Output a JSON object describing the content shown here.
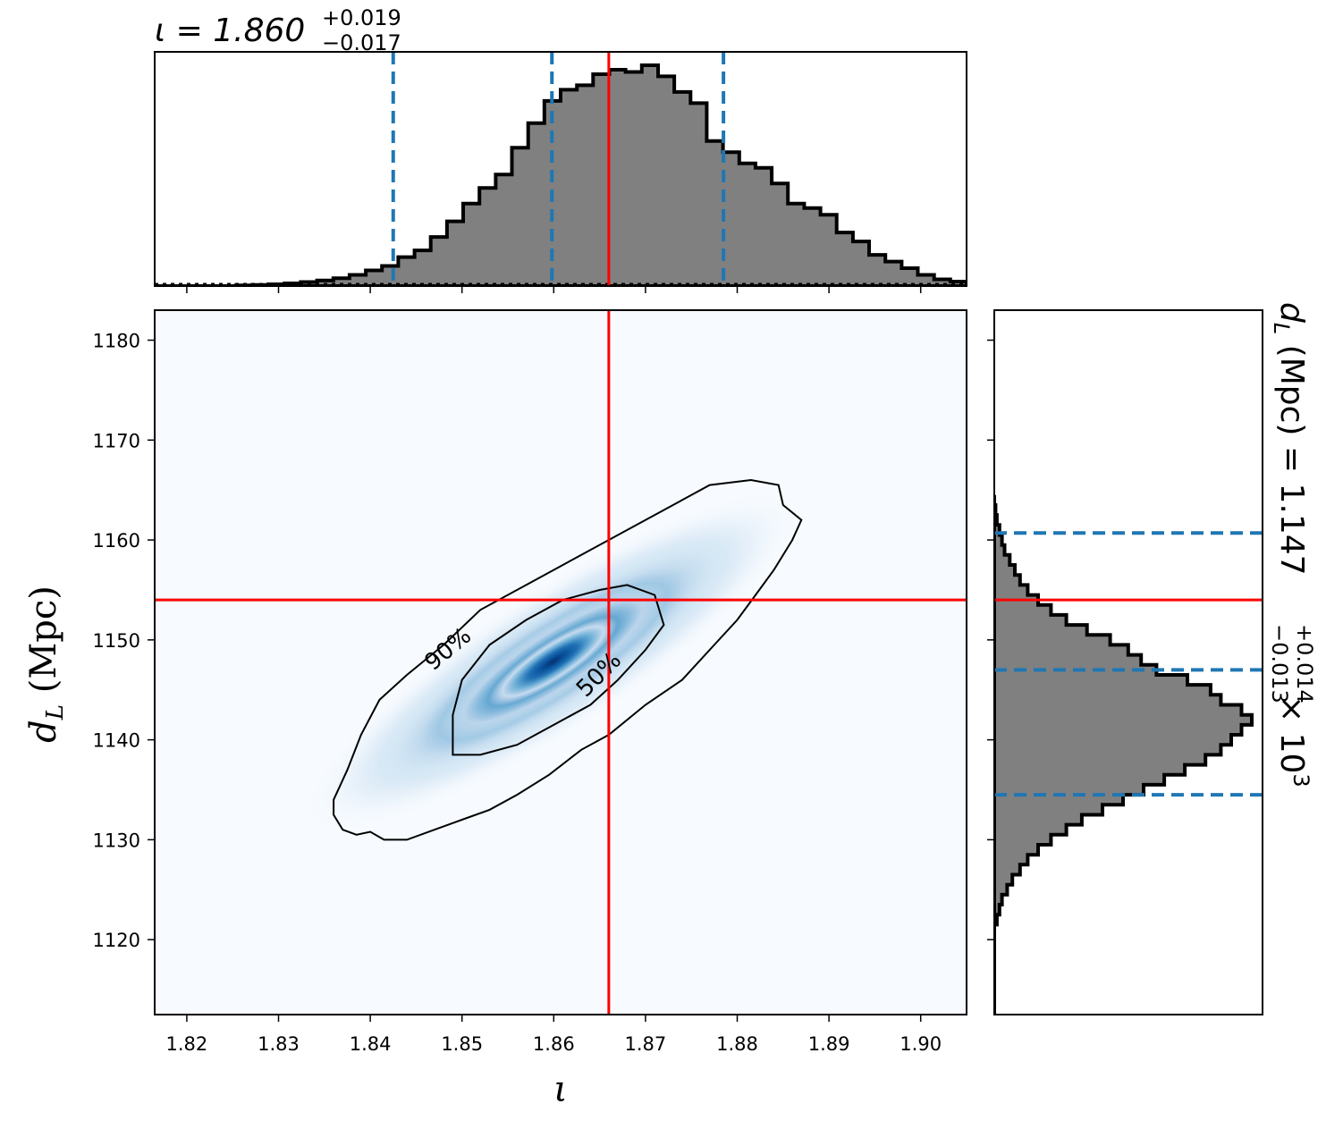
{
  "chart_data": {
    "type": "corner",
    "colors": {
      "truth": "#ff0000",
      "quantile": "#1f77b4",
      "hist_fill": "#808080",
      "hist_edge": "#000000",
      "density_low": "#f7fbff",
      "density_high": "#08306b"
    },
    "top_histogram": {
      "title_main": "ι = 1.860",
      "title_plus": "+0.019",
      "title_minus": "−0.017",
      "xlim": [
        1.8165,
        1.905
      ],
      "ylim": [
        0,
        1.05
      ],
      "quantiles": [
        1.8425,
        1.8598,
        1.8785
      ],
      "truth": 1.866,
      "bin_start": 1.8165,
      "bin_width": 0.00177,
      "counts": [
        0.0,
        0.0,
        0.0,
        0.0,
        0.0,
        0.003,
        0.005,
        0.008,
        0.012,
        0.018,
        0.025,
        0.035,
        0.05,
        0.07,
        0.09,
        0.13,
        0.16,
        0.22,
        0.29,
        0.37,
        0.44,
        0.5,
        0.62,
        0.73,
        0.83,
        0.88,
        0.9,
        0.95,
        0.97,
        0.96,
        0.99,
        0.94,
        0.87,
        0.82,
        0.65,
        0.6,
        0.55,
        0.53,
        0.46,
        0.37,
        0.35,
        0.32,
        0.24,
        0.2,
        0.14,
        0.11,
        0.08,
        0.05,
        0.03,
        0.02,
        0.01
      ]
    },
    "right_histogram": {
      "title_main": "d",
      "title_sub": "L",
      "title_rest": " (Mpc) = 1.147",
      "title_plus": "+0.014",
      "title_minus": "−0.013",
      "title_scale": " × 10",
      "title_exp": "3",
      "ylim": [
        1112.5,
        1183
      ],
      "quantiles": [
        1134.5,
        1147.0,
        1160.7
      ],
      "truth": 1154.0,
      "bin_start": 1112.5,
      "bin_width": 1.0,
      "counts": [
        0.0,
        0.0,
        0.0,
        0.0,
        0.0,
        0.0,
        0.0,
        0.0,
        0.0,
        0.01,
        0.02,
        0.03,
        0.05,
        0.07,
        0.1,
        0.13,
        0.17,
        0.22,
        0.28,
        0.34,
        0.42,
        0.5,
        0.58,
        0.66,
        0.74,
        0.82,
        0.88,
        0.92,
        0.96,
        1.0,
        0.96,
        0.88,
        0.84,
        0.75,
        0.63,
        0.57,
        0.52,
        0.45,
        0.36,
        0.28,
        0.22,
        0.17,
        0.13,
        0.1,
        0.08,
        0.06,
        0.04,
        0.03,
        0.02,
        0.01,
        0.005,
        0.0
      ]
    },
    "main_panel": {
      "xlabel": "ι",
      "ylabel_main": "d",
      "ylabel_sub": "L",
      "ylabel_rest": " (Mpc)",
      "xlim": [
        1.8165,
        1.905
      ],
      "ylim": [
        1112.5,
        1183
      ],
      "x_ticks": [
        "1.82",
        "1.83",
        "1.84",
        "1.85",
        "1.86",
        "1.87",
        "1.88",
        "1.89",
        "1.90"
      ],
      "y_ticks": [
        "1120",
        "1130",
        "1140",
        "1150",
        "1160",
        "1170",
        "1180"
      ],
      "truth_x": 1.866,
      "truth_y": 1154.0,
      "density_center": [
        1.8575,
        1146.5
      ],
      "contour_levels": [
        "50%",
        "90%"
      ],
      "contour_90": [
        [
          1.836,
          1132.5
        ],
        [
          1.837,
          1131.0
        ],
        [
          1.8385,
          1130.5
        ],
        [
          1.84,
          1130.8
        ],
        [
          1.8415,
          1130.0
        ],
        [
          1.844,
          1130.0
        ],
        [
          1.847,
          1131.0
        ],
        [
          1.85,
          1132.0
        ],
        [
          1.853,
          1133.0
        ],
        [
          1.856,
          1134.5
        ],
        [
          1.8595,
          1136.5
        ],
        [
          1.863,
          1139.0
        ],
        [
          1.866,
          1140.5
        ],
        [
          1.87,
          1143.5
        ],
        [
          1.874,
          1146.0
        ],
        [
          1.877,
          1149.0
        ],
        [
          1.88,
          1152.0
        ],
        [
          1.882,
          1154.5
        ],
        [
          1.884,
          1157.0
        ],
        [
          1.886,
          1160.0
        ],
        [
          1.887,
          1162.0
        ],
        [
          1.885,
          1163.5
        ],
        [
          1.8845,
          1165.5
        ],
        [
          1.8815,
          1166.0
        ],
        [
          1.877,
          1165.5
        ],
        [
          1.873,
          1163.5
        ],
        [
          1.868,
          1161.0
        ],
        [
          1.862,
          1158.0
        ],
        [
          1.857,
          1155.5
        ],
        [
          1.852,
          1153.0
        ],
        [
          1.848,
          1149.5
        ],
        [
          1.844,
          1146.5
        ],
        [
          1.841,
          1144.0
        ],
        [
          1.839,
          1140.5
        ],
        [
          1.8375,
          1137.0
        ],
        [
          1.836,
          1134.0
        ]
      ],
      "contour_50": [
        [
          1.849,
          1138.5
        ],
        [
          1.852,
          1138.5
        ],
        [
          1.856,
          1139.5
        ],
        [
          1.86,
          1141.5
        ],
        [
          1.864,
          1143.5
        ],
        [
          1.867,
          1146.0
        ],
        [
          1.87,
          1149.0
        ],
        [
          1.872,
          1151.5
        ],
        [
          1.871,
          1154.5
        ],
        [
          1.868,
          1155.5
        ],
        [
          1.865,
          1155.0
        ],
        [
          1.861,
          1154.0
        ],
        [
          1.857,
          1152.0
        ],
        [
          1.853,
          1149.5
        ],
        [
          1.85,
          1146.0
        ],
        [
          1.849,
          1142.5
        ]
      ]
    }
  }
}
